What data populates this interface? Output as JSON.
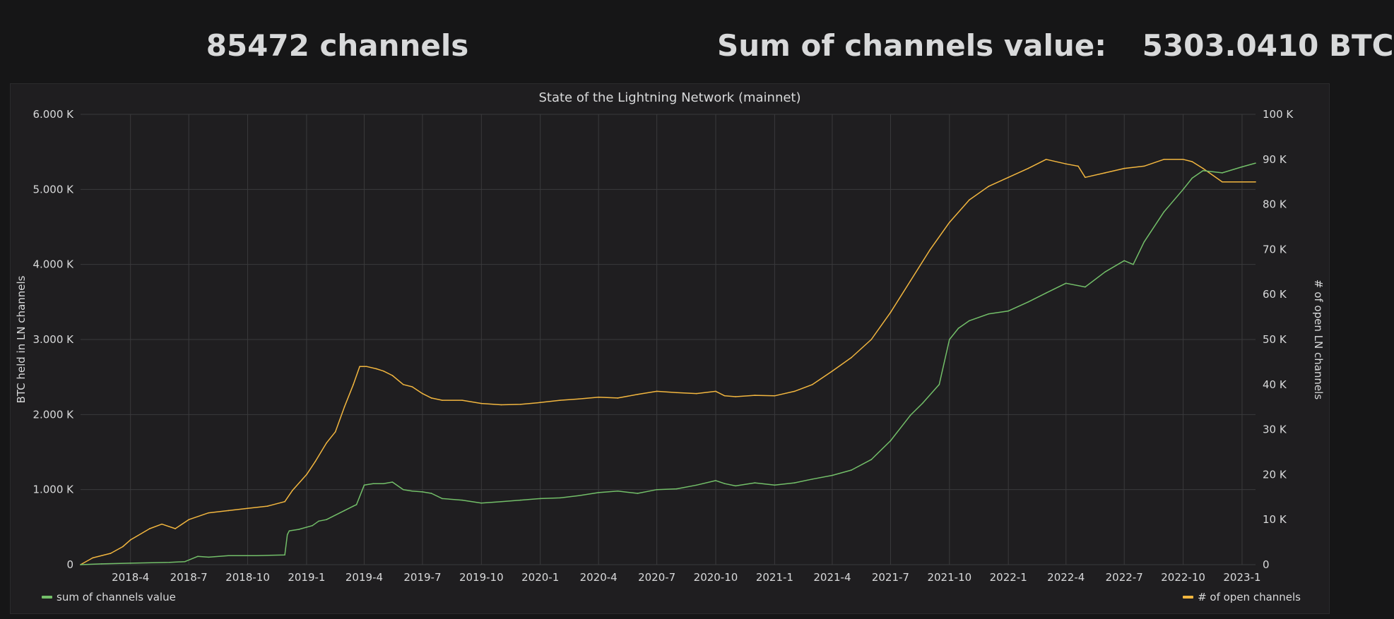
{
  "header": {
    "channels_value": "85472",
    "channels_unit": "channels",
    "sum_label": "Sum of channels value:",
    "sum_value": "5303.0410 BTC"
  },
  "panel": {
    "title": "State of the Lightning Network (mainnet)"
  },
  "legend": {
    "left": "sum of channels value",
    "right": "# of open channels"
  },
  "colors": {
    "background": "#161617",
    "panel": "#1f1e20",
    "grid": "#3a3a3c",
    "text": "#d8d9da",
    "series_sum": "#73bf69",
    "series_channels": "#f2b63f"
  },
  "chart_data": {
    "type": "line",
    "title": "State of the Lightning Network (mainnet)",
    "xlabel": "",
    "ylabel": "BTC held in LN channels",
    "y2label": "# of open LN channels",
    "xlim": [
      "2018-01-13",
      "2023-01-22"
    ],
    "ylim": [
      0,
      6000
    ],
    "y2lim": [
      0,
      100000
    ],
    "x_ticks": [
      "2018-4",
      "2018-7",
      "2018-10",
      "2019-1",
      "2019-4",
      "2019-7",
      "2019-10",
      "2020-1",
      "2020-4",
      "2020-7",
      "2020-10",
      "2021-1",
      "2021-4",
      "2021-7",
      "2021-10",
      "2022-1",
      "2022-4",
      "2022-7",
      "2022-10",
      "2023-1"
    ],
    "y_ticks": [
      "0",
      "1.000 K",
      "2.000 K",
      "3.000 K",
      "4.000 K",
      "5.000 K",
      "6.000 K"
    ],
    "y2_ticks": [
      "0",
      "10 K",
      "20 K",
      "30 K",
      "40 K",
      "50 K",
      "60 K",
      "70 K",
      "80 K",
      "90 K",
      "100 K"
    ],
    "grid": true,
    "legend_position": "bottom",
    "series": [
      {
        "name": "sum of channels value",
        "axis": "left",
        "x": [
          "2018-01-13",
          "2018-02-15",
          "2018-04-01",
          "2018-06-01",
          "2018-06-25",
          "2018-07-15",
          "2018-08-01",
          "2018-09-01",
          "2018-10-15",
          "2018-11-28",
          "2018-12-02",
          "2018-12-05",
          "2018-12-20",
          "2019-01-10",
          "2019-01-20",
          "2019-02-01",
          "2019-03-01",
          "2019-03-15",
          "2019-03-20",
          "2019-04-01",
          "2019-04-15",
          "2019-05-01",
          "2019-05-15",
          "2019-06-01",
          "2019-06-15",
          "2019-07-01",
          "2019-07-15",
          "2019-08-01",
          "2019-09-01",
          "2019-10-01",
          "2019-11-01",
          "2019-12-01",
          "2020-01-01",
          "2020-02-01",
          "2020-03-01",
          "2020-04-01",
          "2020-05-01",
          "2020-06-01",
          "2020-07-01",
          "2020-08-01",
          "2020-09-01",
          "2020-10-01",
          "2020-10-15",
          "2020-11-01",
          "2020-12-01",
          "2021-01-01",
          "2021-02-01",
          "2021-03-01",
          "2021-04-01",
          "2021-05-01",
          "2021-06-01",
          "2021-07-01",
          "2021-08-01",
          "2021-08-20",
          "2021-09-15",
          "2021-10-01",
          "2021-10-15",
          "2021-11-01",
          "2021-12-01",
          "2022-01-01",
          "2022-02-01",
          "2022-03-01",
          "2022-04-01",
          "2022-05-01",
          "2022-06-01",
          "2022-07-01",
          "2022-07-15",
          "2022-08-01",
          "2022-09-01",
          "2022-10-01",
          "2022-10-15",
          "2022-11-01",
          "2022-12-01",
          "2023-01-01",
          "2023-01-22"
        ],
        "values": [
          0,
          10,
          20,
          30,
          40,
          110,
          100,
          120,
          120,
          130,
          400,
          450,
          470,
          520,
          580,
          600,
          720,
          780,
          800,
          1060,
          1080,
          1080,
          1100,
          1000,
          980,
          970,
          950,
          880,
          860,
          820,
          840,
          860,
          880,
          890,
          920,
          960,
          980,
          950,
          1000,
          1010,
          1060,
          1120,
          1080,
          1050,
          1090,
          1060,
          1090,
          1140,
          1190,
          1260,
          1400,
          1650,
          1990,
          2150,
          2400,
          3000,
          3150,
          3250,
          3340,
          3380,
          3500,
          3620,
          3750,
          3700,
          3900,
          4050,
          4000,
          4300,
          4700,
          5000,
          5150,
          5250,
          5220,
          5300,
          5350
        ]
      },
      {
        "name": "# of open channels",
        "axis": "right",
        "x": [
          "2018-01-13",
          "2018-02-01",
          "2018-03-01",
          "2018-03-20",
          "2018-04-01",
          "2018-05-01",
          "2018-05-20",
          "2018-06-10",
          "2018-07-01",
          "2018-08-01",
          "2018-09-01",
          "2018-10-01",
          "2018-11-01",
          "2018-11-28",
          "2018-12-10",
          "2019-01-01",
          "2019-01-15",
          "2019-02-01",
          "2019-02-15",
          "2019-03-01",
          "2019-03-15",
          "2019-03-25",
          "2019-04-05",
          "2019-04-20",
          "2019-05-01",
          "2019-05-15",
          "2019-06-01",
          "2019-06-15",
          "2019-07-01",
          "2019-07-15",
          "2019-08-01",
          "2019-09-01",
          "2019-10-01",
          "2019-11-01",
          "2019-12-01",
          "2020-01-01",
          "2020-02-01",
          "2020-03-01",
          "2020-04-01",
          "2020-05-01",
          "2020-06-01",
          "2020-07-01",
          "2020-08-01",
          "2020-09-01",
          "2020-10-01",
          "2020-10-15",
          "2020-11-01",
          "2020-12-01",
          "2021-01-01",
          "2021-02-01",
          "2021-03-01",
          "2021-04-01",
          "2021-05-01",
          "2021-06-01",
          "2021-07-01",
          "2021-08-01",
          "2021-09-01",
          "2021-10-01",
          "2021-11-01",
          "2021-12-01",
          "2022-01-01",
          "2022-02-01",
          "2022-03-01",
          "2022-04-01",
          "2022-04-20",
          "2022-05-01",
          "2022-06-01",
          "2022-07-01",
          "2022-08-01",
          "2022-09-01",
          "2022-10-01",
          "2022-10-15",
          "2022-11-01",
          "2022-12-01",
          "2023-01-22"
        ],
        "values": [
          0,
          1500,
          2500,
          4000,
          5500,
          8000,
          9000,
          8000,
          10000,
          11500,
          12000,
          12500,
          13000,
          14000,
          16500,
          20000,
          23000,
          27000,
          29500,
          35000,
          40000,
          44000,
          44000,
          43500,
          43000,
          42000,
          40000,
          39500,
          38000,
          37000,
          36500,
          36500,
          35800,
          35500,
          35600,
          36000,
          36500,
          36800,
          37200,
          37000,
          37800,
          38500,
          38200,
          38000,
          38500,
          37500,
          37300,
          37600,
          37500,
          38500,
          40000,
          43000,
          46000,
          50000,
          56000,
          63000,
          70000,
          76000,
          81000,
          84000,
          86000,
          88000,
          90000,
          89000,
          88500,
          86000,
          87000,
          88000,
          88500,
          90000,
          90000,
          89500,
          88000,
          85000,
          85000
        ]
      }
    ]
  }
}
